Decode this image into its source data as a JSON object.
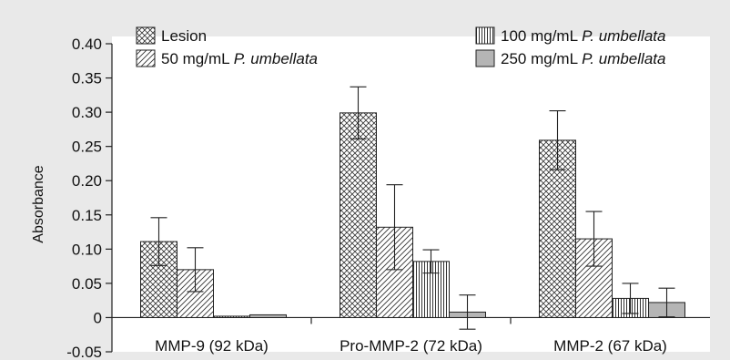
{
  "chart_data": {
    "type": "bar",
    "title": "",
    "xlabel": "",
    "ylabel": "Absorbance",
    "ylim": [
      -0.05,
      0.4
    ],
    "yticks": [
      "-0.05",
      "0",
      "0.05",
      "0.10",
      "0.15",
      "0.20",
      "0.25",
      "0.30",
      "0.35",
      "0.40"
    ],
    "categories": [
      "MMP-9 (92 kDa)",
      "Pro-MMP-2 (72 kDa)",
      "MMP-2 (67 kDa)"
    ],
    "grid": false,
    "legend_placement": "top",
    "series": [
      {
        "name": "Lesion",
        "legend_main": "Lesion",
        "legend_italic": "",
        "pattern": "crosshatch",
        "values": [
          0.111,
          0.299,
          0.259
        ],
        "errors": [
          0.035,
          0.038,
          0.043
        ]
      },
      {
        "name": "50 mg/mL P. umbellata",
        "legend_main": "50 mg/mL ",
        "legend_italic": "P. umbellata",
        "pattern": "diagonal",
        "values": [
          0.07,
          0.132,
          0.115
        ],
        "errors": [
          0.032,
          0.062,
          0.04
        ]
      },
      {
        "name": "100 mg/mL P. umbellata",
        "legend_main": "100 mg/mL ",
        "legend_italic": "P. umbellata",
        "pattern": "vertical",
        "values": [
          0.001,
          0.082,
          0.028
        ],
        "errors": [
          0,
          0.017,
          0.022
        ]
      },
      {
        "name": "250 mg/mL P. umbellata",
        "legend_main": "250 mg/mL ",
        "legend_italic": "P. umbellata",
        "pattern": "solid",
        "fill": "#b5b5b5",
        "values": [
          0.004,
          0.008,
          0.022
        ],
        "errors": [
          0,
          0.025,
          0.021
        ]
      }
    ]
  },
  "colors": {
    "background": "#e9e9e9",
    "plot_background": "#ffffff",
    "ink": "#222222",
    "solid_bar": "#b5b5b5"
  }
}
